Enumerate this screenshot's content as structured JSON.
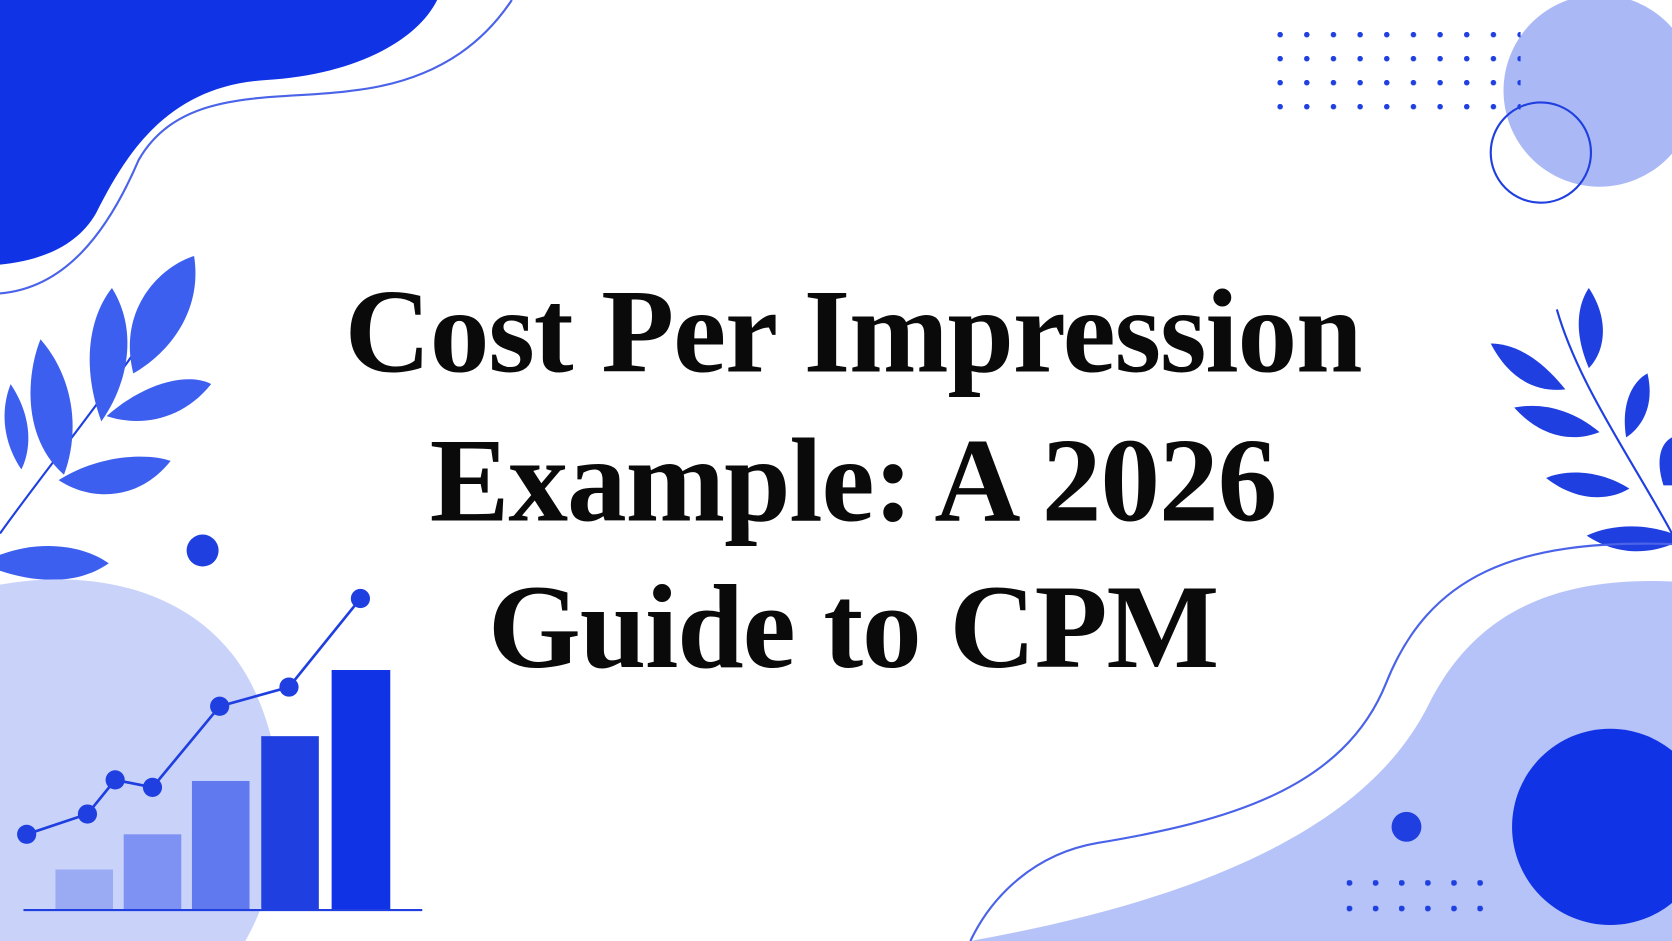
{
  "title": {
    "lines": [
      "Cost Per Impression",
      "Example: A 2026",
      "Guide to CPM"
    ]
  }
}
